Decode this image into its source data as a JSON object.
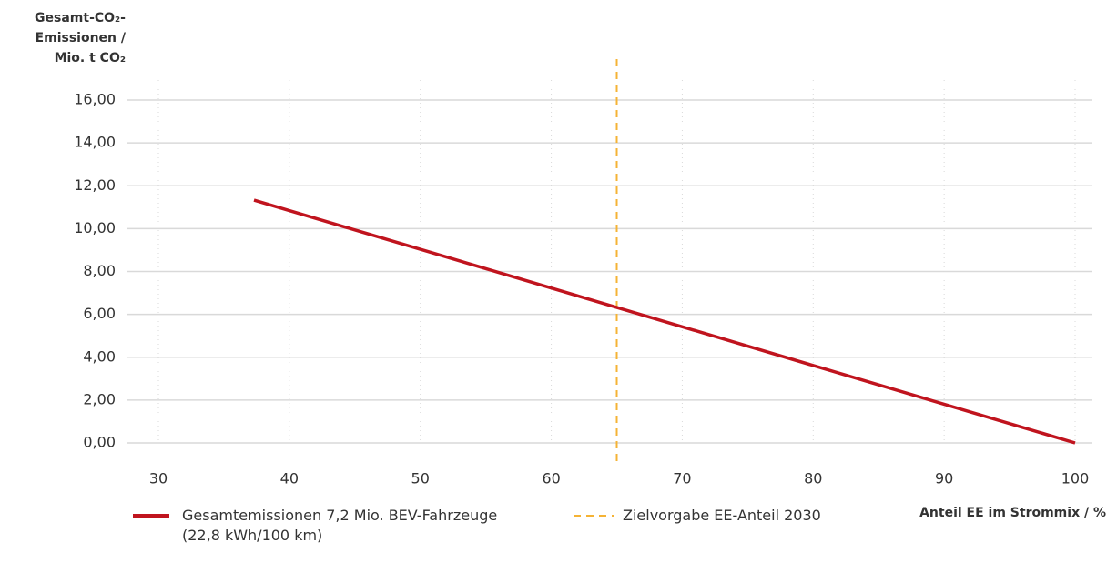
{
  "chart_data": {
    "type": "line",
    "y_label": [
      "Gesamt-CO₂-",
      "Emissionen /",
      "Mio. t CO₂"
    ],
    "x_label": "Anteil EE im Strommix / %",
    "x": [
      37.3,
      100
    ],
    "series": [
      {
        "name": "Gesamtemissionen 7,2 Mio. BEV-Fahrzeuge (22,8 kWh/100 km)",
        "color": "#c0141e",
        "values": [
          11.33,
          0
        ]
      }
    ],
    "vlines": [
      {
        "x": 65,
        "name": "Zielvorgabe EE-Anteil 2030",
        "color": "#f5b335",
        "dash": true
      }
    ],
    "xlim": [
      30,
      100
    ],
    "xticks": [
      30,
      40,
      50,
      60,
      70,
      80,
      90,
      100
    ],
    "ylim": [
      0,
      16
    ],
    "yticks": [
      {
        "value": 0,
        "label": "0,00"
      },
      {
        "value": 2,
        "label": "2,00"
      },
      {
        "value": 4,
        "label": "4,00"
      },
      {
        "value": 6,
        "label": "6,00"
      },
      {
        "value": 8,
        "label": "8,00"
      },
      {
        "value": 10,
        "label": "10,00"
      },
      {
        "value": 12,
        "label": "12,00"
      },
      {
        "value": 14,
        "label": "14,00"
      },
      {
        "value": 16,
        "label": "16,00"
      }
    ],
    "grid": true
  }
}
